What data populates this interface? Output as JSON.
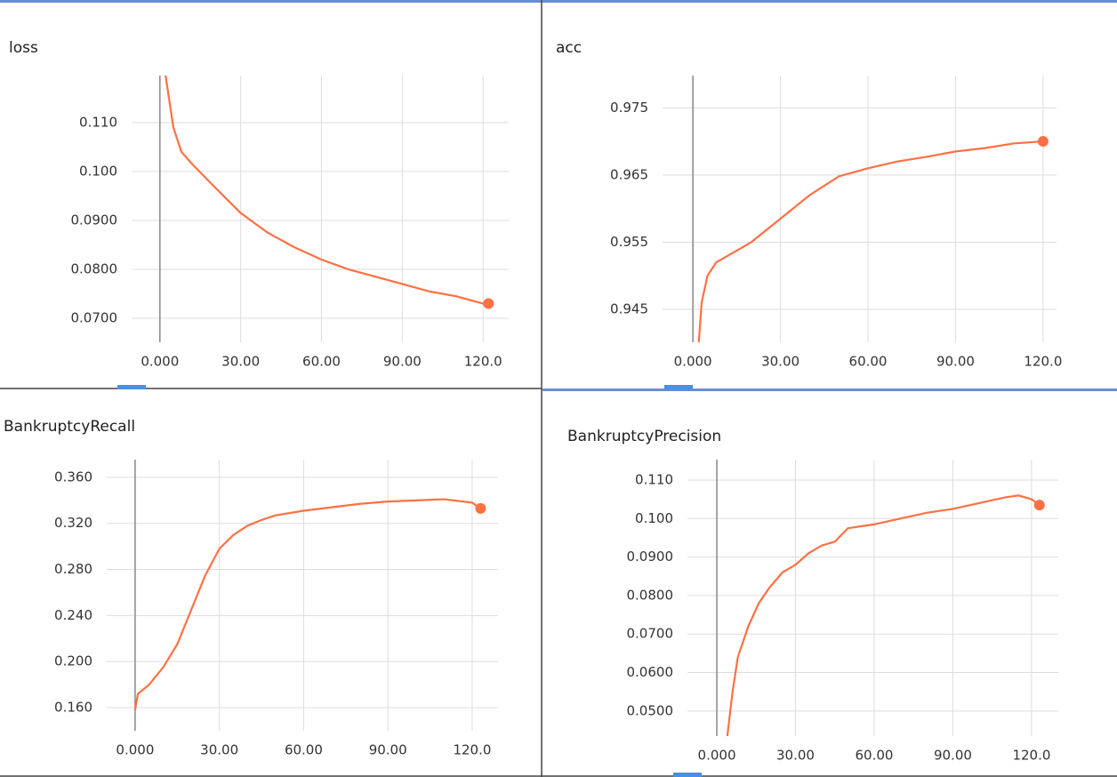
{
  "chart_data": [
    {
      "type": "line",
      "title": "loss",
      "x": [
        2,
        5,
        8,
        12,
        20,
        30,
        40,
        50,
        60,
        70,
        80,
        90,
        100,
        110,
        120,
        122
      ],
      "series": [
        {
          "color": "#ff7043",
          "values": [
            0.12,
            0.109,
            0.104,
            0.1015,
            0.097,
            0.0915,
            0.0875,
            0.0845,
            0.082,
            0.08,
            0.0785,
            0.077,
            0.0755,
            0.0745,
            0.073,
            0.073
          ]
        }
      ],
      "xlim": [
        -10.5,
        129.5
      ],
      "xticks": [
        {
          "value": 0,
          "label": "0.000"
        },
        {
          "value": 30,
          "label": "30.00"
        },
        {
          "value": 60,
          "label": "60.00"
        },
        {
          "value": 90,
          "label": "90.00"
        },
        {
          "value": 120,
          "label": "120.0"
        }
      ],
      "ylim": [
        0.0651,
        0.1196
      ],
      "yticks": [
        {
          "value": 0.07,
          "label": "0.0700"
        },
        {
          "value": 0.08,
          "label": "0.0800"
        },
        {
          "value": 0.09,
          "label": "0.0900"
        },
        {
          "value": 0.1,
          "label": "0.100"
        },
        {
          "value": 0.11,
          "label": "0.110"
        }
      ],
      "grid": true
    },
    {
      "type": "line",
      "title": "acc",
      "x": [
        2,
        3,
        5,
        8,
        12,
        20,
        30,
        40,
        50,
        60,
        70,
        80,
        90,
        100,
        110,
        120
      ],
      "series": [
        {
          "color": "#ff7043",
          "values": [
            0.94,
            0.946,
            0.95,
            0.952,
            0.953,
            0.955,
            0.9585,
            0.962,
            0.9648,
            0.966,
            0.967,
            0.9677,
            0.9685,
            0.969,
            0.9697,
            0.97
          ]
        }
      ],
      "xlim": [
        -10.4,
        124.6
      ],
      "xticks": [
        {
          "value": 0,
          "label": "0.000"
        },
        {
          "value": 30,
          "label": "30.00"
        },
        {
          "value": 60,
          "label": "60.00"
        },
        {
          "value": 90,
          "label": "90.00"
        },
        {
          "value": 120,
          "label": "120.0"
        }
      ],
      "ylim": [
        0.9401,
        0.9798
      ],
      "yticks": [
        0.945,
        0.955,
        0.965,
        0.975
      ],
      "grid": true
    },
    {
      "type": "line",
      "title": "BankruptcyRecall",
      "x": [
        0,
        1,
        5,
        10,
        15,
        20,
        25,
        30,
        35,
        40,
        45,
        50,
        60,
        70,
        80,
        90,
        100,
        110,
        120,
        123
      ],
      "series": [
        {
          "color": "#ff7043",
          "values": [
            0.158,
            0.172,
            0.18,
            0.195,
            0.215,
            0.245,
            0.275,
            0.298,
            0.31,
            0.318,
            0.323,
            0.327,
            0.331,
            0.334,
            0.337,
            0.339,
            0.34,
            0.341,
            0.338,
            0.333
          ]
        }
      ],
      "xlim": [
        -10.1,
        129.2
      ],
      "xticks": [
        {
          "value": 0,
          "label": "0.000"
        },
        {
          "value": 30,
          "label": "30.00"
        },
        {
          "value": 60,
          "label": "60.00"
        },
        {
          "value": 90,
          "label": "90.00"
        },
        {
          "value": 120,
          "label": "120.0"
        }
      ],
      "ylim": [
        0.1399,
        0.3754
      ],
      "yticks": [
        {
          "value": 0.16,
          "label": "0.160"
        },
        {
          "value": 0.2,
          "label": "0.200"
        },
        {
          "value": 0.24,
          "label": "0.240"
        },
        {
          "value": 0.28,
          "label": "0.280"
        },
        {
          "value": 0.32,
          "label": "0.320"
        },
        {
          "value": 0.36,
          "label": "0.360"
        }
      ],
      "grid": true
    },
    {
      "type": "line",
      "title": "BankruptcyPrecision",
      "x": [
        4,
        6,
        8,
        12,
        16,
        20,
        25,
        30,
        35,
        40,
        45,
        50,
        60,
        70,
        80,
        90,
        100,
        110,
        115,
        120,
        123
      ],
      "series": [
        {
          "color": "#ff7043",
          "values": [
            0.0435,
            0.055,
            0.064,
            0.072,
            0.078,
            0.082,
            0.086,
            0.088,
            0.091,
            0.093,
            0.094,
            0.0975,
            0.0985,
            0.1,
            0.1015,
            0.1025,
            0.104,
            0.1055,
            0.106,
            0.105,
            0.1035
          ]
        }
      ],
      "xlim": [
        -11.2,
        130.2
      ],
      "xticks": [
        {
          "value": 0,
          "label": "0.000"
        },
        {
          "value": 30,
          "label": "30.00"
        },
        {
          "value": 60,
          "label": "60.00"
        },
        {
          "value": 90,
          "label": "90.00"
        },
        {
          "value": 120,
          "label": "120.0"
        }
      ],
      "ylim": [
        0.0435,
        0.1153
      ],
      "yticks": [
        {
          "value": 0.05,
          "label": "0.0500"
        },
        {
          "value": 0.06,
          "label": "0.0600"
        },
        {
          "value": 0.07,
          "label": "0.0700"
        },
        {
          "value": 0.08,
          "label": "0.0800"
        },
        {
          "value": 0.09,
          "label": "0.0900"
        },
        {
          "value": 0.1,
          "label": "0.100"
        },
        {
          "value": 0.11,
          "label": "0.110"
        }
      ],
      "grid": true
    }
  ]
}
